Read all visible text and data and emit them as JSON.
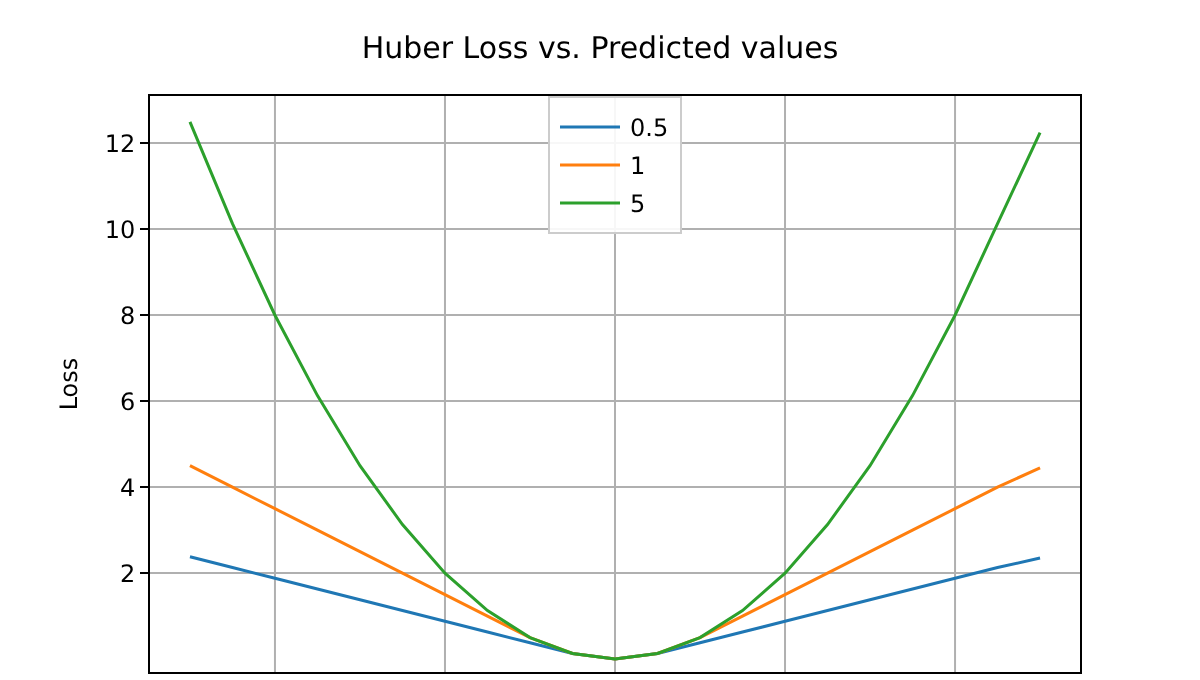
{
  "chart_data": {
    "type": "line",
    "title": "Huber Loss vs. Predicted values",
    "ylabel": "Loss",
    "categories": [
      null,
      null,
      null,
      null,
      null,
      null,
      null,
      null,
      null,
      null,
      null,
      null,
      null,
      null,
      null,
      null,
      null,
      null,
      null,
      null,
      null
    ],
    "series": [
      {
        "name": "0.5",
        "color": "#1f77b4",
        "values": [
          2.38,
          2.13,
          1.88,
          1.63,
          1.38,
          1.13,
          0.88,
          0.63,
          0.38,
          0.13,
          0,
          0.13,
          0.38,
          0.63,
          0.88,
          1.13,
          1.38,
          1.63,
          1.88,
          2.13,
          2.35
        ]
      },
      {
        "name": "1",
        "color": "#ff7f0e",
        "values": [
          4.5,
          4,
          3.5,
          3,
          2.5,
          2,
          1.5,
          1,
          0.5,
          0.13,
          0,
          0.13,
          0.5,
          1,
          1.5,
          2,
          2.5,
          3,
          3.5,
          4,
          4.45
        ]
      },
      {
        "name": "5",
        "color": "#2ca02c",
        "values": [
          12.5,
          10.13,
          8,
          6.13,
          4.5,
          3.13,
          2,
          1.13,
          0.5,
          0.13,
          0,
          0.13,
          0.5,
          1.13,
          2,
          3.13,
          4.5,
          6.13,
          8,
          10.13,
          12.25
        ]
      }
    ],
    "ylim": [
      -0.3,
      13.1
    ],
    "yticks": [
      2,
      4,
      6,
      8,
      10,
      12
    ],
    "tick_labels": "y",
    "grid": true,
    "legend": "top",
    "marker": "none",
    "line_style": "solid"
  }
}
